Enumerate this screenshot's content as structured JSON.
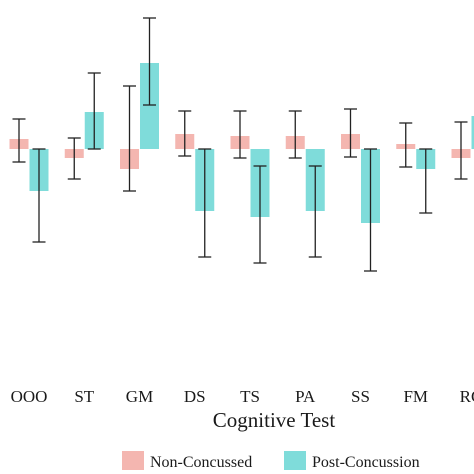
{
  "chart_data": {
    "type": "bar",
    "xlabel": "Cognitive Test",
    "categories": [
      "OOO",
      "ST",
      "GM",
      "DS",
      "TS",
      "PA",
      "SS",
      "FM",
      "RC"
    ],
    "series": [
      {
        "name": "Non-Concussed",
        "color": "#F4B6B0",
        "values": [
          0.1,
          -0.09,
          -0.2,
          0.15,
          0.13,
          0.13,
          0.15,
          0.05,
          -0.09
        ],
        "err_low": [
          -0.13,
          -0.3,
          -0.42,
          -0.07,
          -0.09,
          -0.09,
          -0.08,
          -0.18,
          -0.3
        ],
        "err_high": [
          0.3,
          0.11,
          0.63,
          0.38,
          0.38,
          0.38,
          0.4,
          0.26,
          0.27
        ]
      },
      {
        "name": "Post-Concussion",
        "color": "#7FDCDA",
        "values": [
          -0.42,
          0.37,
          0.86,
          -0.62,
          -0.68,
          -0.62,
          -0.74,
          -0.2,
          0.33
        ],
        "err_low": [
          -0.93,
          0.0,
          0.44,
          -1.08,
          -1.14,
          -1.08,
          -1.22,
          -0.64,
          -0.1
        ],
        "err_high": [
          0.0,
          0.76,
          1.31,
          0.0,
          -0.17,
          -0.17,
          0.0,
          0.0,
          0.8
        ]
      }
    ],
    "ylim": [
      -1.35,
      1.55
    ],
    "grid": false,
    "legend_position": "bottom"
  }
}
